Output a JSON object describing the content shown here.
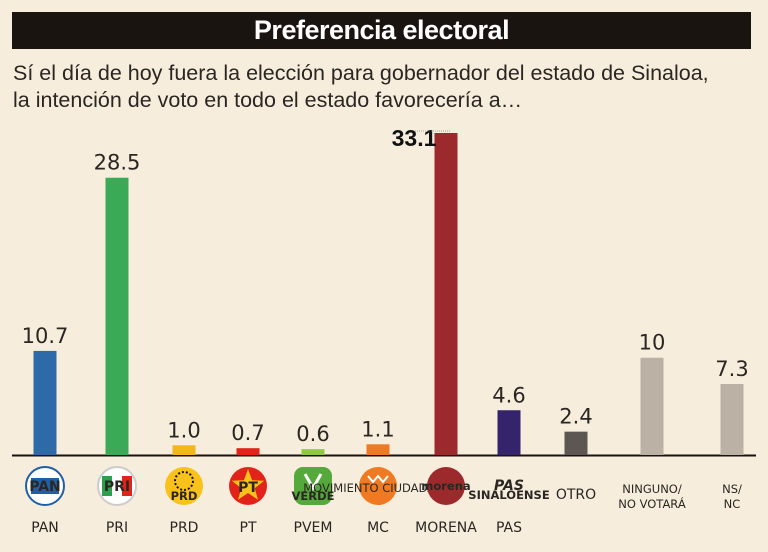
{
  "header": {
    "title": "Preferencia electoral",
    "subtitle_line1": "Sí el día de hoy fuera la elección para gobernador del estado de Sinaloa,",
    "subtitle_line2": "la intención de voto en todo el estado favorecería a…"
  },
  "chart_data": {
    "type": "bar",
    "title": "Preferencia electoral",
    "categories": [
      "PAN",
      "PRI",
      "PRD",
      "PT",
      "PVEM",
      "MC",
      "MORENA",
      "PAS",
      "OTRO",
      "NINGUNO/ NO VOTARÁ",
      "NS/ NC"
    ],
    "values": [
      10.7,
      28.5,
      1.0,
      0.7,
      0.6,
      1.1,
      33.1,
      4.6,
      2.4,
      10,
      7.3
    ],
    "value_labels": [
      "10.7",
      "28.5",
      "1.0",
      "0.7",
      "0.6",
      "1.1",
      "33.1",
      "4.6",
      "2.4",
      "10",
      "7.3"
    ],
    "colors": [
      "#2f6aa8",
      "#3aaa57",
      "#f2b71c",
      "#e2231a",
      "#8fc93f",
      "#f07a21",
      "#9c2a2d",
      "#35246b",
      "#5c5752",
      "#bcb1a5",
      "#bcb1a5"
    ],
    "highlight": "MORENA",
    "logos": {
      "PAN": "PAN",
      "PRI": "PRI",
      "PRD": "PRD",
      "PT": "PT",
      "PVEM": "VERDE",
      "MC": "MOVIMIENTO CIUDADANO",
      "MORENA": "morena",
      "PAS": "PAS",
      "PAS_sub": "SINALOENSE"
    },
    "xlabel": "",
    "ylabel": "",
    "ylim": [
      0,
      35
    ]
  }
}
